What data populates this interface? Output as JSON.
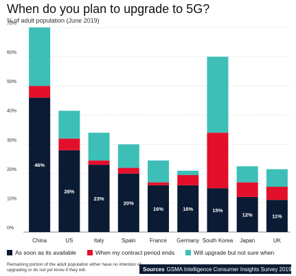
{
  "title": "When do you plan to upgrade to 5G?",
  "subtitle": "% of adult population (June 2019)",
  "colors": {
    "soon": "#0b1b33",
    "contract": "#e3102b",
    "unsure": "#3dbfb8"
  },
  "chart_data": {
    "type": "bar",
    "stacked": true,
    "categories": [
      "China",
      "US",
      "Italy",
      "Spain",
      "France",
      "Germany",
      "South Korea",
      "Japan",
      "UK"
    ],
    "series": [
      {
        "name": "As soon as its available",
        "values": [
          46,
          28,
          23,
          20,
          16,
          16,
          15,
          12,
          11
        ],
        "labels": [
          "46%",
          "28%",
          "23%",
          "20%",
          "16%",
          "16%",
          "15%",
          "12%",
          "11%"
        ]
      },
      {
        "name": "When my contract period ends",
        "values": [
          4,
          4,
          1.5,
          2,
          1,
          3.5,
          19,
          5,
          4.5
        ]
      },
      {
        "name": "Will upgrade but not sure when",
        "values": [
          20,
          9.5,
          9.5,
          8,
          7.5,
          1.5,
          26,
          5.5,
          6
        ]
      }
    ],
    "ylim": [
      0,
      70
    ],
    "yticks": [
      "0%",
      "10%",
      "20%",
      "30%",
      "40%",
      "50%",
      "60%",
      "70%"
    ],
    "grid": true,
    "legend_position": "bottom"
  },
  "footnote": "Remaining portion of the adult population either have no intention of upgrading or do not yet know if they will.",
  "source": {
    "label": "Sources",
    "text": "GSMA Intelligence Consumer Insights Survey 2019"
  }
}
